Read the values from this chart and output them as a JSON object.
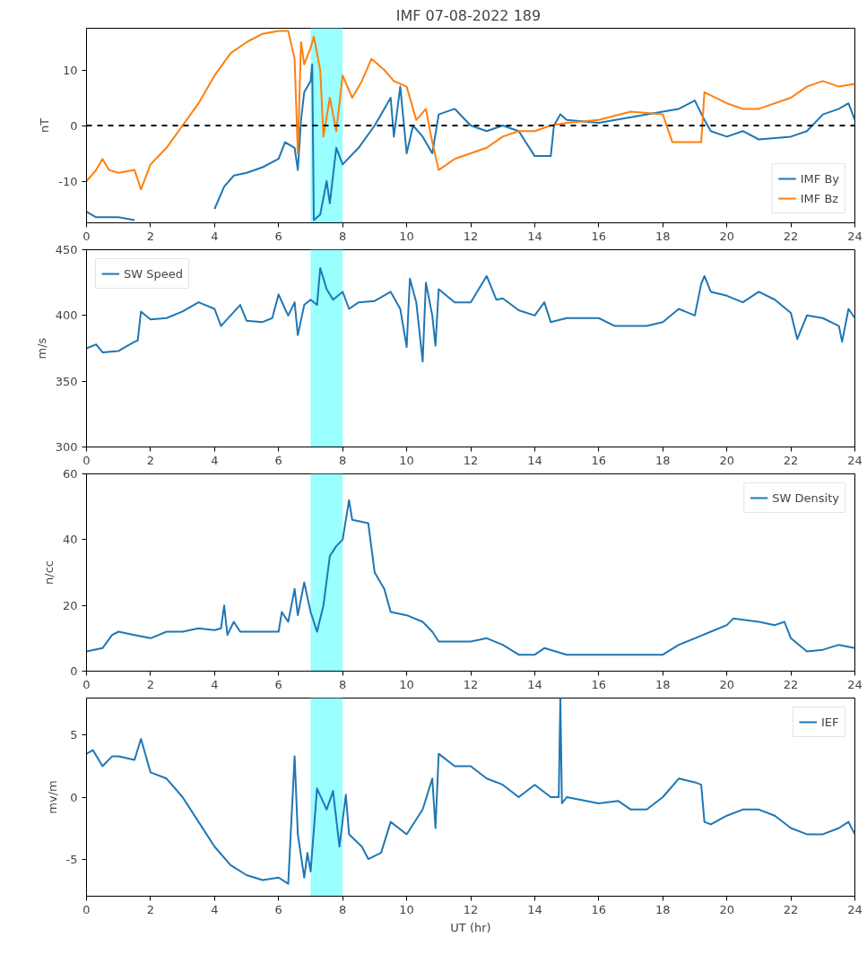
{
  "chart_data": [
    {
      "type": "line",
      "title": "IMF  07-08-2022 189",
      "ylabel": "nT",
      "xlim": [
        0,
        24
      ],
      "xticks": [
        0,
        2,
        4,
        6,
        8,
        10,
        12,
        14,
        16,
        18,
        20,
        22,
        24
      ],
      "ylim": [
        -17.5,
        17.5
      ],
      "yticks": [
        -10,
        0,
        10
      ],
      "grid": false,
      "legend": "bottom right",
      "line_style": "solid",
      "ref_lines": [
        {
          "axis": "y",
          "value": 0,
          "color": "#000000",
          "line_style": "dashed"
        }
      ],
      "bands": [
        {
          "axis": "x",
          "from": 7,
          "to": 8,
          "color": "#99ffff"
        }
      ],
      "series": [
        {
          "name": "IMF By",
          "color": "#1f77b4",
          "x": [
            0,
            0.3,
            1,
            1.5,
            1.7,
            2.5,
            3.8,
            4,
            4.3,
            4.6,
            5,
            5.5,
            6,
            6.2,
            6.5,
            6.6,
            6.7,
            6.8,
            7,
            7.05,
            7.1,
            7.3,
            7.5,
            7.6,
            7.8,
            8,
            8.5,
            9,
            9.3,
            9.5,
            9.6,
            9.8,
            10,
            10.2,
            10.5,
            10.8,
            11,
            11.5,
            12,
            12.5,
            13,
            13.5,
            14,
            14.5,
            14.6,
            14.8,
            15,
            16,
            17,
            18,
            18.5,
            19,
            19.3,
            19.5,
            20,
            20.5,
            21,
            22,
            22.5,
            23,
            23.5,
            23.8,
            24
          ],
          "values": [
            -15.5,
            -16.5,
            -16.5,
            -17,
            null,
            null,
            null,
            -15,
            -11,
            -9,
            -8.5,
            -7.5,
            -6,
            -3,
            -4,
            -8,
            1,
            6,
            8,
            11,
            -17,
            -16,
            -10,
            -14,
            -4,
            -7,
            -4,
            0,
            3,
            5,
            -2,
            7,
            -5,
            0,
            -2,
            -5,
            2,
            3,
            0,
            -1,
            0,
            -1,
            -5.5,
            -5.5,
            0,
            2,
            1,
            0.5,
            1.5,
            2.5,
            3,
            4.5,
            1,
            -1,
            -2,
            -1,
            -2.5,
            -2,
            -1,
            2,
            3,
            4,
            1
          ]
        },
        {
          "name": "IMF Bz",
          "color": "#ff7f0e",
          "x": [
            0,
            0.3,
            0.5,
            0.7,
            1,
            1.5,
            1.7,
            2,
            2.5,
            3,
            3.5,
            4,
            4.5,
            5,
            5.5,
            6,
            6.3,
            6.5,
            6.6,
            6.7,
            6.8,
            7,
            7.1,
            7.3,
            7.4,
            7.6,
            7.8,
            8,
            8.3,
            8.6,
            8.9,
            9.3,
            9.6,
            10,
            10.3,
            10.6,
            10.8,
            11,
            11.5,
            12,
            12.5,
            13,
            13.5,
            14,
            14.5,
            15,
            16,
            17,
            18,
            18.3,
            19,
            19.2,
            19.3,
            20,
            20.5,
            21,
            22,
            22.5,
            23,
            23.5,
            24
          ],
          "values": [
            -10,
            -8,
            -6,
            -8,
            -8.5,
            -8,
            -11.5,
            -7,
            -4,
            0,
            4,
            9,
            13,
            15,
            16.5,
            17,
            17,
            12,
            -5,
            15,
            11,
            14,
            16,
            10,
            -2,
            5,
            -1,
            9,
            5,
            8,
            12,
            10,
            8,
            7,
            1,
            3,
            -3,
            -8,
            -6,
            -5,
            -4,
            -2,
            -1,
            -1,
            0,
            0.5,
            1,
            2.5,
            2,
            -3,
            -3,
            -3,
            6,
            4,
            3,
            3,
            5,
            7,
            8,
            7,
            7.5
          ]
        }
      ]
    },
    {
      "type": "line",
      "ylabel": "m/s",
      "xlim": [
        0,
        24
      ],
      "xticks": [
        0,
        2,
        4,
        6,
        8,
        10,
        12,
        14,
        16,
        18,
        20,
        22,
        24
      ],
      "ylim": [
        300,
        450
      ],
      "yticks": [
        300,
        350,
        400,
        450
      ],
      "grid": false,
      "legend": "top left",
      "line_style": "solid",
      "bands": [
        {
          "axis": "x",
          "from": 7,
          "to": 8,
          "color": "#99ffff"
        }
      ],
      "series": [
        {
          "name": "SW Speed",
          "color": "#1f77b4",
          "x": [
            0,
            0.3,
            0.5,
            1,
            1.5,
            1.6,
            1.7,
            2,
            2.5,
            3,
            3.5,
            4,
            4.2,
            4.5,
            4.8,
            5,
            5.5,
            5.8,
            6,
            6.2,
            6.3,
            6.5,
            6.6,
            6.8,
            7,
            7.2,
            7.3,
            7.5,
            7.7,
            8,
            8.2,
            8.5,
            9,
            9.5,
            9.8,
            10,
            10.1,
            10.3,
            10.5,
            10.6,
            10.8,
            10.9,
            11,
            11.5,
            12,
            12.5,
            12.8,
            13,
            13.5,
            14,
            14.3,
            14.5,
            15,
            16,
            16.5,
            17,
            17.5,
            18,
            18.5,
            19,
            19.2,
            19.3,
            19.5,
            20,
            20.5,
            21,
            21.5,
            22,
            22.2,
            22.5,
            23,
            23.5,
            23.6,
            23.8,
            24
          ],
          "values": [
            375,
            378,
            372,
            373,
            380,
            381,
            403,
            397,
            398,
            403,
            410,
            405,
            392,
            400,
            408,
            396,
            395,
            398,
            416,
            405,
            400,
            410,
            385,
            408,
            412,
            408,
            436,
            420,
            412,
            418,
            405,
            410,
            411,
            418,
            405,
            376,
            428,
            410,
            365,
            425,
            400,
            377,
            420,
            410,
            410,
            430,
            412,
            413,
            404,
            400,
            410,
            395,
            398,
            398,
            392,
            392,
            392,
            395,
            405,
            400,
            424,
            430,
            418,
            415,
            410,
            418,
            412,
            402,
            382,
            400,
            398,
            392,
            380,
            405,
            398
          ]
        }
      ]
    },
    {
      "type": "line",
      "ylabel": "n/cc",
      "xlim": [
        0,
        24
      ],
      "xticks": [
        0,
        2,
        4,
        6,
        8,
        10,
        12,
        14,
        16,
        18,
        20,
        22,
        24
      ],
      "ylim": [
        0,
        60
      ],
      "yticks": [
        0,
        20,
        40,
        60
      ],
      "grid": false,
      "legend": "top right",
      "line_style": "solid",
      "bands": [
        {
          "axis": "x",
          "from": 7,
          "to": 8,
          "color": "#99ffff"
        }
      ],
      "series": [
        {
          "name": "SW Density",
          "color": "#1f77b4",
          "x": [
            0,
            0.5,
            0.8,
            1,
            1.5,
            2,
            2.5,
            3,
            3.5,
            4,
            4.2,
            4.3,
            4.4,
            4.6,
            4.8,
            5,
            6,
            6.1,
            6.3,
            6.5,
            6.6,
            6.8,
            7,
            7.2,
            7.4,
            7.6,
            7.8,
            8,
            8.2,
            8.3,
            8.8,
            9,
            9.3,
            9.5,
            10,
            10.5,
            10.8,
            11,
            12,
            12.5,
            13,
            13.5,
            14,
            14.3,
            15,
            16,
            17,
            18,
            18.5,
            19,
            19.5,
            20,
            20.2,
            21,
            21.5,
            21.8,
            22,
            22.5,
            23,
            23.5,
            24
          ],
          "values": [
            6,
            7,
            11,
            12,
            11,
            10,
            12,
            12,
            13,
            12.5,
            13,
            20,
            11,
            15,
            12,
            12,
            12,
            18,
            15,
            25,
            17,
            27,
            18,
            12,
            20,
            35,
            38,
            40,
            52,
            46,
            45,
            30,
            25,
            18,
            17,
            15,
            12,
            9,
            9,
            10,
            8,
            5,
            5,
            7,
            5,
            5,
            5,
            5,
            8,
            10,
            12,
            14,
            16,
            15,
            14,
            15,
            10,
            6,
            6.5,
            8,
            7
          ]
        }
      ]
    },
    {
      "type": "line",
      "ylabel": "mv/m",
      "xlabel": "UT (hr)",
      "xlim": [
        0,
        24
      ],
      "xticks": [
        0,
        2,
        4,
        6,
        8,
        10,
        12,
        14,
        16,
        18,
        20,
        22,
        24
      ],
      "ylim": [
        -8,
        8
      ],
      "yticks": [
        -5,
        0,
        5
      ],
      "grid": false,
      "legend": "top right",
      "line_style": "solid",
      "bands": [
        {
          "axis": "x",
          "from": 7,
          "to": 8,
          "color": "#99ffff"
        }
      ],
      "series": [
        {
          "name": "IEF",
          "color": "#1f77b4",
          "x": [
            0,
            0.2,
            0.5,
            0.8,
            1,
            1.5,
            1.7,
            2,
            2.5,
            3,
            3.5,
            4,
            4.5,
            5,
            5.5,
            6,
            6.3,
            6.5,
            6.6,
            6.8,
            6.9,
            7,
            7.2,
            7.5,
            7.7,
            7.9,
            8.1,
            8.2,
            8.6,
            8.8,
            9.2,
            9.5,
            10,
            10.5,
            10.8,
            10.9,
            11,
            11.5,
            12,
            12.5,
            13,
            13.5,
            14,
            14.5,
            14.75,
            14.8,
            14.85,
            15,
            16,
            16.6,
            17,
            17.5,
            18,
            18.5,
            19,
            19.2,
            19.3,
            19.5,
            20,
            20.5,
            21,
            21.5,
            22,
            22.5,
            23,
            23.5,
            23.8,
            24
          ],
          "values": [
            3.5,
            3.8,
            2.5,
            3.3,
            3.3,
            3,
            4.7,
            2,
            1.5,
            0,
            -2,
            -4,
            -5.5,
            -6.3,
            -6.7,
            -6.5,
            -7,
            3.3,
            -3,
            -6.5,
            -4.5,
            -6,
            0.7,
            -1,
            0.5,
            -4,
            0.2,
            -3,
            -4,
            -5,
            -4.5,
            -2,
            -3,
            -1,
            1.5,
            -2.5,
            3.5,
            2.5,
            2.5,
            1.5,
            1,
            0,
            1,
            0,
            0,
            8,
            -0.5,
            0,
            -0.5,
            -0.3,
            -1,
            -1,
            0,
            1.5,
            1.2,
            1,
            -2,
            -2.2,
            -1.5,
            -1,
            -1,
            -1.5,
            -2.5,
            -3,
            -3,
            -2.5,
            -2,
            -3
          ]
        }
      ]
    }
  ]
}
